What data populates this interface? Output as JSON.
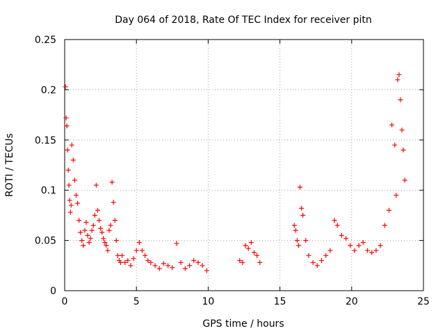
{
  "chart_data": {
    "type": "scatter",
    "title": "Day 064 of 2018, Rate Of TEC Index for receiver pitn",
    "xlabel": "GPS time / hours",
    "ylabel": "ROTI / TECUs",
    "xlim": [
      0,
      25
    ],
    "ylim": [
      0,
      0.25
    ],
    "xticks": [
      0,
      5,
      10,
      15,
      20,
      25
    ],
    "xtick_labels": [
      "0",
      "5",
      "10",
      "15",
      "20",
      "25"
    ],
    "yticks": [
      0,
      0.05,
      0.1,
      0.15,
      0.2,
      0.25
    ],
    "ytick_labels": [
      "0",
      "0.05",
      "0.1",
      "0.15",
      "0.2",
      "0.25"
    ],
    "grid": true,
    "marker": "+",
    "marker_color": "#ff0000",
    "series": [
      {
        "name": "ROTI",
        "x": [
          0.05,
          0.1,
          0.15,
          0.2,
          0.25,
          0.3,
          0.35,
          0.4,
          0.45,
          0.5,
          0.6,
          0.7,
          0.8,
          0.9,
          1.0,
          1.1,
          1.2,
          1.3,
          1.4,
          1.5,
          1.6,
          1.7,
          1.8,
          1.9,
          2.0,
          2.1,
          2.2,
          2.3,
          2.4,
          2.5,
          2.6,
          2.7,
          2.8,
          2.9,
          3.0,
          3.1,
          3.2,
          3.3,
          3.4,
          3.5,
          3.6,
          3.7,
          3.8,
          3.9,
          4.0,
          4.2,
          4.4,
          4.6,
          4.8,
          5.0,
          5.2,
          5.4,
          5.6,
          5.8,
          6.0,
          6.3,
          6.6,
          6.9,
          7.2,
          7.5,
          7.8,
          8.1,
          8.4,
          8.7,
          9.0,
          9.3,
          9.6,
          9.9,
          12.2,
          12.4,
          12.6,
          12.8,
          13.0,
          13.2,
          13.4,
          13.6,
          16.0,
          16.1,
          16.2,
          16.3,
          16.4,
          16.5,
          16.6,
          16.8,
          17.0,
          17.3,
          17.6,
          17.9,
          18.2,
          18.5,
          18.8,
          19.0,
          19.3,
          19.6,
          19.9,
          20.2,
          20.5,
          20.8,
          21.1,
          21.4,
          21.7,
          22.0,
          22.3,
          22.6,
          22.8,
          23.0,
          23.1,
          23.2,
          23.3,
          23.4,
          23.5,
          23.6,
          23.7
        ],
        "y": [
          0.203,
          0.172,
          0.164,
          0.14,
          0.12,
          0.105,
          0.09,
          0.078,
          0.085,
          0.145,
          0.13,
          0.11,
          0.095,
          0.087,
          0.07,
          0.058,
          0.05,
          0.045,
          0.06,
          0.068,
          0.055,
          0.048,
          0.052,
          0.06,
          0.065,
          0.075,
          0.105,
          0.08,
          0.07,
          0.062,
          0.058,
          0.052,
          0.048,
          0.045,
          0.04,
          0.06,
          0.065,
          0.108,
          0.088,
          0.07,
          0.05,
          0.035,
          0.03,
          0.028,
          0.035,
          0.028,
          0.03,
          0.025,
          0.032,
          0.04,
          0.048,
          0.04,
          0.035,
          0.03,
          0.028,
          0.025,
          0.022,
          0.027,
          0.025,
          0.023,
          0.047,
          0.028,
          0.022,
          0.025,
          0.03,
          0.028,
          0.025,
          0.02,
          0.03,
          0.028,
          0.045,
          0.042,
          0.048,
          0.038,
          0.035,
          0.028,
          0.065,
          0.06,
          0.05,
          0.045,
          0.103,
          0.082,
          0.075,
          0.05,
          0.035,
          0.028,
          0.025,
          0.03,
          0.035,
          0.04,
          0.07,
          0.065,
          0.055,
          0.052,
          0.045,
          0.04,
          0.045,
          0.048,
          0.04,
          0.038,
          0.04,
          0.045,
          0.065,
          0.08,
          0.165,
          0.145,
          0.095,
          0.21,
          0.215,
          0.19,
          0.16,
          0.14,
          0.11
        ]
      }
    ]
  }
}
